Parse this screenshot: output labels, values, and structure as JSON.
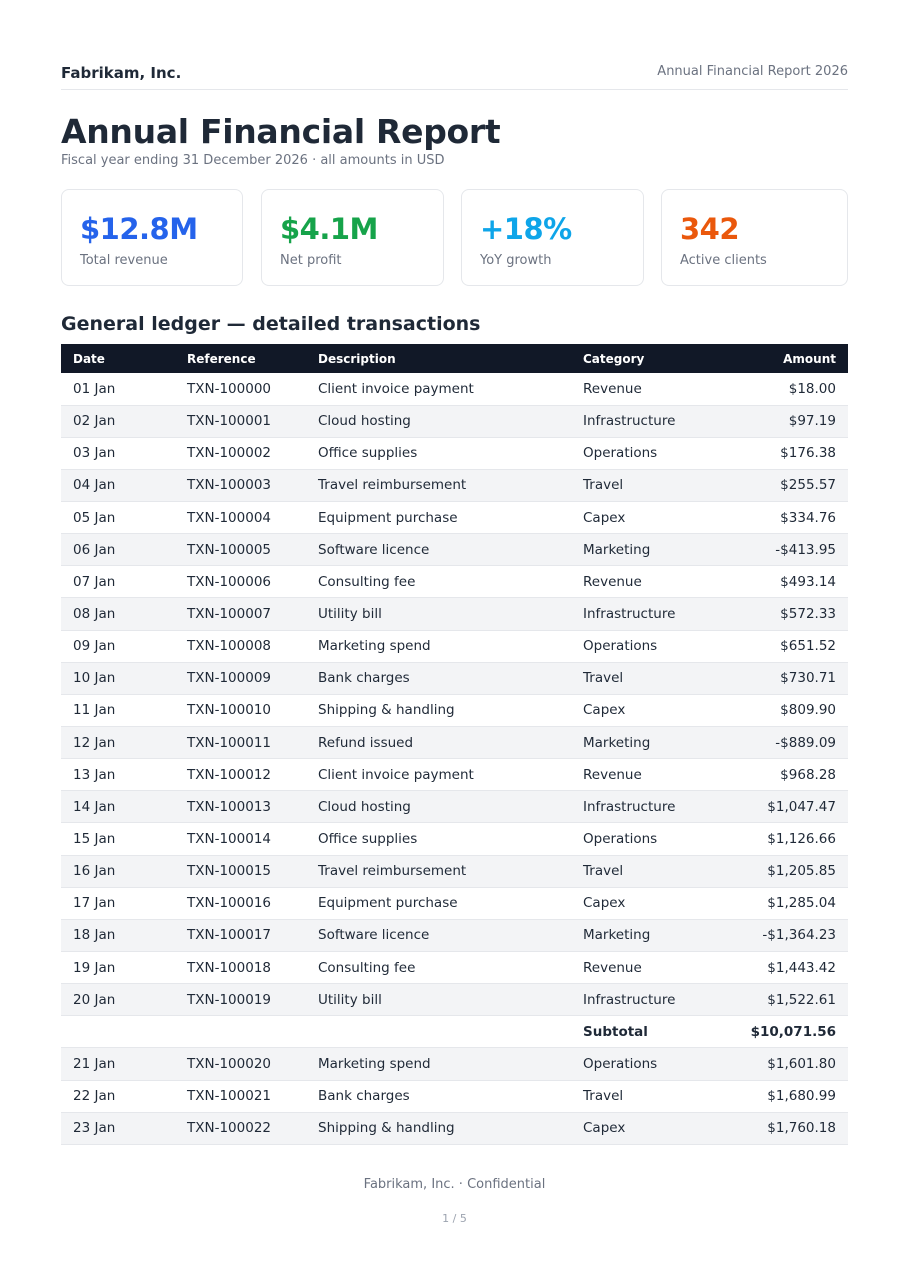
{
  "header": {
    "company": "Fabrikam, Inc.",
    "document_name": "Annual Financial Report 2026"
  },
  "title": "Annual Financial Report",
  "subtitle": "Fiscal year ending 31 December 2026 · all amounts in USD",
  "colors": {
    "revenue": "#2563eb",
    "profit": "#16a34a",
    "growth": "#0ea5e9",
    "clients": "#ea580c",
    "table_header": "#111827",
    "row_stripe": "#f3f4f6"
  },
  "kpis": [
    {
      "value": "$12.8M",
      "label": "Total revenue"
    },
    {
      "value": "$4.1M",
      "label": "Net profit"
    },
    {
      "value": "+18%",
      "label": "YoY growth"
    },
    {
      "value": "342",
      "label": "Active clients"
    }
  ],
  "ledger": {
    "title": "General ledger — detailed transactions",
    "columns": [
      "Date",
      "Reference",
      "Description",
      "Category",
      "Amount"
    ],
    "rows": [
      {
        "date": "01 Jan",
        "ref": "TXN-100000",
        "desc": "Client invoice payment",
        "cat": "Revenue",
        "amount": "$18.00"
      },
      {
        "date": "02 Jan",
        "ref": "TXN-100001",
        "desc": "Cloud hosting",
        "cat": "Infrastructure",
        "amount": "$97.19"
      },
      {
        "date": "03 Jan",
        "ref": "TXN-100002",
        "desc": "Office supplies",
        "cat": "Operations",
        "amount": "$176.38"
      },
      {
        "date": "04 Jan",
        "ref": "TXN-100003",
        "desc": "Travel reimbursement",
        "cat": "Travel",
        "amount": "$255.57"
      },
      {
        "date": "05 Jan",
        "ref": "TXN-100004",
        "desc": "Equipment purchase",
        "cat": "Capex",
        "amount": "$334.76"
      },
      {
        "date": "06 Jan",
        "ref": "TXN-100005",
        "desc": "Software licence",
        "cat": "Marketing",
        "amount": "-$413.95"
      },
      {
        "date": "07 Jan",
        "ref": "TXN-100006",
        "desc": "Consulting fee",
        "cat": "Revenue",
        "amount": "$493.14"
      },
      {
        "date": "08 Jan",
        "ref": "TXN-100007",
        "desc": "Utility bill",
        "cat": "Infrastructure",
        "amount": "$572.33"
      },
      {
        "date": "09 Jan",
        "ref": "TXN-100008",
        "desc": "Marketing spend",
        "cat": "Operations",
        "amount": "$651.52"
      },
      {
        "date": "10 Jan",
        "ref": "TXN-100009",
        "desc": "Bank charges",
        "cat": "Travel",
        "amount": "$730.71"
      },
      {
        "date": "11 Jan",
        "ref": "TXN-100010",
        "desc": "Shipping & handling",
        "cat": "Capex",
        "amount": "$809.90"
      },
      {
        "date": "12 Jan",
        "ref": "TXN-100011",
        "desc": "Refund issued",
        "cat": "Marketing",
        "amount": "-$889.09"
      },
      {
        "date": "13 Jan",
        "ref": "TXN-100012",
        "desc": "Client invoice payment",
        "cat": "Revenue",
        "amount": "$968.28"
      },
      {
        "date": "14 Jan",
        "ref": "TXN-100013",
        "desc": "Cloud hosting",
        "cat": "Infrastructure",
        "amount": "$1,047.47"
      },
      {
        "date": "15 Jan",
        "ref": "TXN-100014",
        "desc": "Office supplies",
        "cat": "Operations",
        "amount": "$1,126.66"
      },
      {
        "date": "16 Jan",
        "ref": "TXN-100015",
        "desc": "Travel reimbursement",
        "cat": "Travel",
        "amount": "$1,205.85"
      },
      {
        "date": "17 Jan",
        "ref": "TXN-100016",
        "desc": "Equipment purchase",
        "cat": "Capex",
        "amount": "$1,285.04"
      },
      {
        "date": "18 Jan",
        "ref": "TXN-100017",
        "desc": "Software licence",
        "cat": "Marketing",
        "amount": "-$1,364.23"
      },
      {
        "date": "19 Jan",
        "ref": "TXN-100018",
        "desc": "Consulting fee",
        "cat": "Revenue",
        "amount": "$1,443.42"
      },
      {
        "date": "20 Jan",
        "ref": "TXN-100019",
        "desc": "Utility bill",
        "cat": "Infrastructure",
        "amount": "$1,522.61"
      },
      {
        "subtotal": true,
        "label": "Subtotal",
        "amount": "$10,071.56"
      },
      {
        "date": "21 Jan",
        "ref": "TXN-100020",
        "desc": "Marketing spend",
        "cat": "Operations",
        "amount": "$1,601.80"
      },
      {
        "date": "22 Jan",
        "ref": "TXN-100021",
        "desc": "Bank charges",
        "cat": "Travel",
        "amount": "$1,680.99"
      },
      {
        "date": "23 Jan",
        "ref": "TXN-100022",
        "desc": "Shipping & handling",
        "cat": "Capex",
        "amount": "$1,760.18"
      }
    ]
  },
  "footer": {
    "text": "Fabrikam, Inc. · Confidential",
    "page": "1 / 5"
  }
}
